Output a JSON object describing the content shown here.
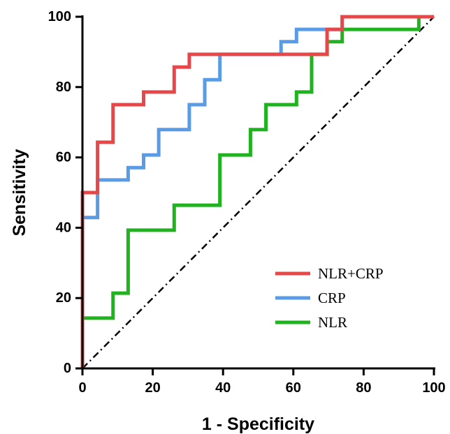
{
  "chart_data": {
    "type": "line",
    "title": "",
    "xlabel": "1 - Specificity",
    "ylabel": "Sensitivity",
    "xlim": [
      0,
      100
    ],
    "ylim": [
      0,
      100
    ],
    "xticks": [
      0,
      20,
      40,
      60,
      80,
      100
    ],
    "yticks": [
      0,
      20,
      40,
      60,
      80,
      100
    ],
    "grid": false,
    "legend_position": "bottom-right",
    "reference_line": {
      "style": "dash-dot",
      "from": [
        0,
        0
      ],
      "to": [
        100,
        100
      ],
      "color": "#000000"
    },
    "series": [
      {
        "name": "NLR+CRP",
        "color": "#E8474A",
        "points": [
          [
            0,
            0
          ],
          [
            0,
            50
          ],
          [
            4.3,
            50
          ],
          [
            4.3,
            64.3
          ],
          [
            8.7,
            64.3
          ],
          [
            8.7,
            75
          ],
          [
            17.4,
            75
          ],
          [
            17.4,
            78.6
          ],
          [
            26.1,
            78.6
          ],
          [
            26.1,
            85.7
          ],
          [
            30.4,
            85.7
          ],
          [
            30.4,
            89.3
          ],
          [
            69.6,
            89.3
          ],
          [
            69.6,
            96.4
          ],
          [
            73.9,
            96.4
          ],
          [
            73.9,
            100
          ],
          [
            100,
            100
          ]
        ]
      },
      {
        "name": "CRP",
        "color": "#5A9BE6",
        "points": [
          [
            0,
            0
          ],
          [
            0,
            42.9
          ],
          [
            4.3,
            42.9
          ],
          [
            4.3,
            53.6
          ],
          [
            13,
            53.6
          ],
          [
            13,
            57.1
          ],
          [
            17.4,
            57.1
          ],
          [
            17.4,
            60.7
          ],
          [
            21.7,
            60.7
          ],
          [
            21.7,
            67.9
          ],
          [
            30.4,
            67.9
          ],
          [
            30.4,
            75
          ],
          [
            34.8,
            75
          ],
          [
            34.8,
            82.1
          ],
          [
            39.1,
            82.1
          ],
          [
            39.1,
            89.3
          ],
          [
            56.5,
            89.3
          ],
          [
            56.5,
            92.9
          ],
          [
            60.9,
            92.9
          ],
          [
            60.9,
            96.4
          ],
          [
            73.9,
            96.4
          ],
          [
            73.9,
            100
          ],
          [
            100,
            100
          ]
        ]
      },
      {
        "name": "NLR",
        "color": "#1FB31F",
        "points": [
          [
            0,
            0
          ],
          [
            0,
            14.3
          ],
          [
            8.7,
            14.3
          ],
          [
            8.7,
            21.4
          ],
          [
            13,
            21.4
          ],
          [
            13,
            39.3
          ],
          [
            26.1,
            39.3
          ],
          [
            26.1,
            46.4
          ],
          [
            39.1,
            46.4
          ],
          [
            39.1,
            60.7
          ],
          [
            47.8,
            60.7
          ],
          [
            47.8,
            67.9
          ],
          [
            52.2,
            67.9
          ],
          [
            52.2,
            75
          ],
          [
            60.9,
            75
          ],
          [
            60.9,
            78.6
          ],
          [
            65.2,
            78.6
          ],
          [
            65.2,
            89.3
          ],
          [
            69.6,
            89.3
          ],
          [
            69.6,
            92.9
          ],
          [
            73.9,
            92.9
          ],
          [
            73.9,
            96.4
          ],
          [
            95.7,
            96.4
          ],
          [
            95.7,
            100
          ],
          [
            100,
            100
          ]
        ]
      }
    ]
  }
}
